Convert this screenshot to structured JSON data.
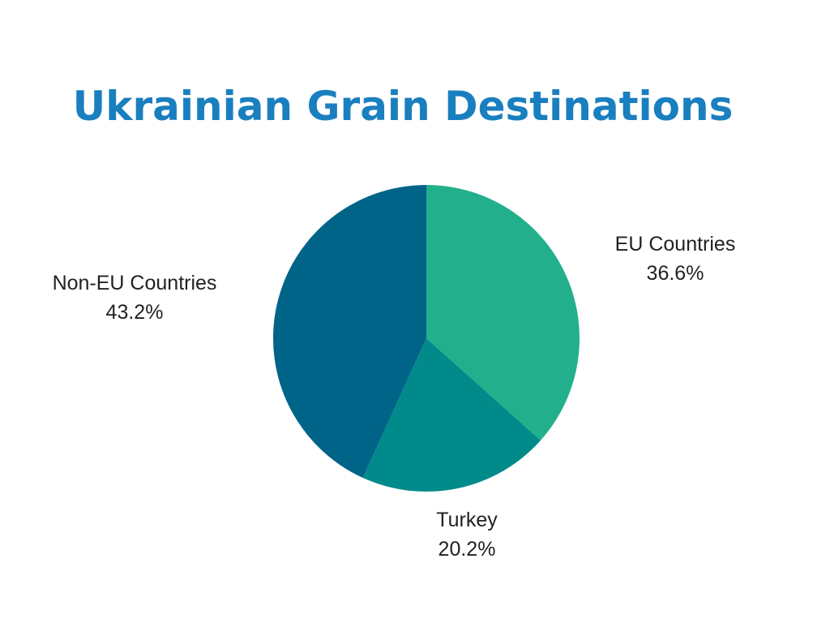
{
  "chart_data": {
    "type": "pie",
    "title": "Ukrainian Grain Destinations",
    "categories": [
      "EU Countries",
      "Turkey",
      "Non-EU Countries"
    ],
    "values": [
      36.6,
      20.2,
      43.2
    ],
    "value_labels": [
      "36.6%",
      "20.2%",
      "43.2%"
    ],
    "colors": [
      "#22b08c",
      "#008a8a",
      "#006488"
    ]
  }
}
